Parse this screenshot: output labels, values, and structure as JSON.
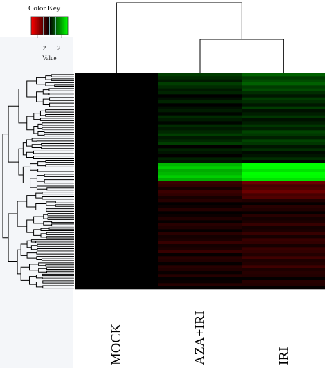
{
  "color_key": {
    "title": "Color Key",
    "axis_label": "Value",
    "ticks": [
      -2,
      2
    ],
    "tick_labels": [
      "−2",
      "2"
    ],
    "range": [
      -3,
      3
    ],
    "colors": {
      "low": "#ff0000",
      "mid": "#000000",
      "high": "#00ff00"
    }
  },
  "chart_data": {
    "type": "heatmap",
    "title": "",
    "columns": [
      "MOCK",
      "AZA+IRI",
      "IRI"
    ],
    "column_dendrogram": "(MOCK,(AZA+IRI,IRI))",
    "row_bands": [
      {
        "MOCK": 0,
        "AZA+IRI": 0.5,
        "IRI": 0.9
      },
      {
        "MOCK": 0,
        "AZA+IRI": 0.2,
        "IRI": 0.5
      },
      {
        "MOCK": 0,
        "AZA+IRI": 0.3,
        "IRI": 0.4
      },
      {
        "MOCK": 0,
        "AZA+IRI": 0.5,
        "IRI": 0.6
      },
      {
        "MOCK": 0,
        "AZA+IRI": 0.2,
        "IRI": 0.3
      },
      {
        "MOCK": 0,
        "AZA+IRI": 2.2,
        "IRI": 2.9
      },
      {
        "MOCK": 0,
        "AZA+IRI": -0.5,
        "IRI": -1.0
      },
      {
        "MOCK": 0,
        "AZA+IRI": -0.2,
        "IRI": -0.3
      },
      {
        "MOCK": 0,
        "AZA+IRI": -0.3,
        "IRI": -0.4
      },
      {
        "MOCK": 0,
        "AZA+IRI": -0.4,
        "IRI": -0.5
      },
      {
        "MOCK": 0,
        "AZA+IRI": -0.3,
        "IRI": -0.5
      },
      {
        "MOCK": 0,
        "AZA+IRI": -0.2,
        "IRI": -0.3
      }
    ]
  }
}
